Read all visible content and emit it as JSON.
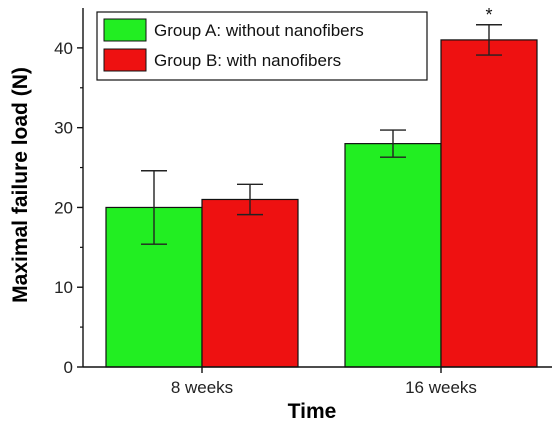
{
  "chart_data": {
    "type": "bar",
    "categories": [
      "8 weeks",
      "16 weeks"
    ],
    "series": [
      {
        "name": "Group A: without nanofibers",
        "values": [
          20,
          28
        ],
        "errors": [
          4.6,
          1.7
        ],
        "color": "#22ee22"
      },
      {
        "name": "Group B: with nanofibers",
        "values": [
          21,
          41
        ],
        "errors": [
          1.9,
          1.9
        ],
        "color": "#ee1111"
      }
    ],
    "xlabel": "Time",
    "ylabel": "Maximal failure load (N)",
    "ylim": [
      0,
      45
    ],
    "yticks": [
      "0",
      "10",
      "20",
      "30",
      "40"
    ],
    "grid": false,
    "legend": "top-left",
    "annotations": [
      {
        "text": "*",
        "category": "16 weeks",
        "series": "Group B: with nanofibers"
      }
    ]
  }
}
